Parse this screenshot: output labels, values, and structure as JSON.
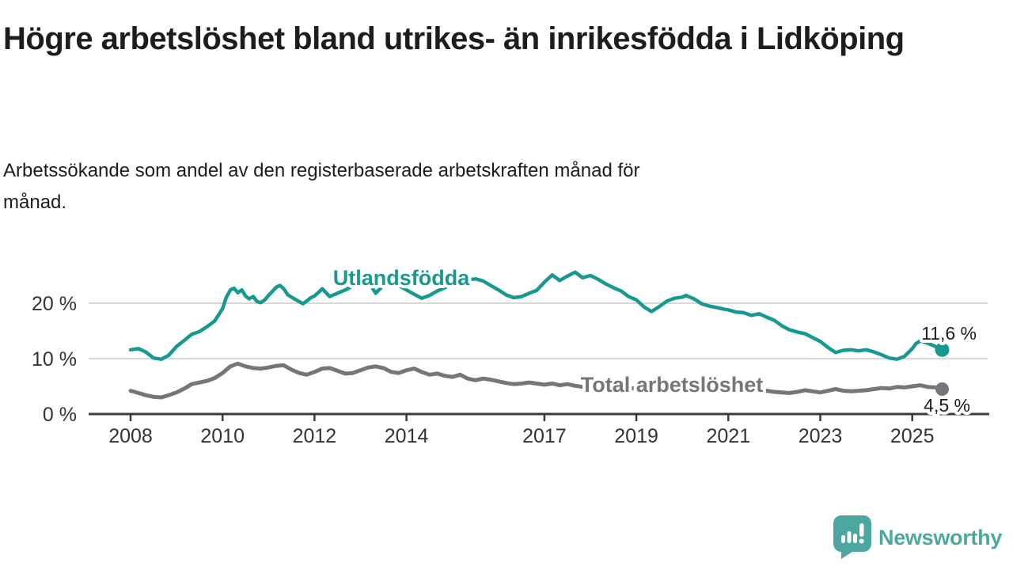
{
  "header": {
    "title": "Högre arbetslöshet bland utrikes- än inrikesfödda i Lidköping",
    "subtitle": "Arbetssökande som andel av den registerbaserade arbetskraften månad för månad."
  },
  "footer": {
    "brand": "Newsworthy"
  },
  "colors": {
    "foreign_born_line": "#18998F",
    "total_line": "#76757A",
    "brand_teal": "#4CA7A1",
    "axis": "#3B3B3B",
    "grid": "#CCCCCC",
    "text": "#1D1D1D"
  },
  "chart_data": {
    "type": "line",
    "title": "Högre arbetslöshet bland utrikes- än inrikesfödda i Lidköping",
    "subtitle": "Arbetssökande som andel av den registerbaserade arbetskraften månad för månad.",
    "unit": "%",
    "grid": "horizontal",
    "legend_position": "inline-labels",
    "x_ticks": [
      2008,
      2010,
      2012,
      2014,
      2017,
      2019,
      2021,
      2023,
      2025
    ],
    "y_ticks": [
      0,
      10,
      20
    ],
    "y_tick_suffix": " %",
    "xlim": [
      2007.1,
      2026.7
    ],
    "ylim": [
      0,
      26
    ],
    "series": [
      {
        "name": "Total arbetslöshet",
        "color": "#76757A",
        "end_label": "4,5 %",
        "end_value": 4.5,
        "points": [
          [
            2008.0,
            4.2
          ],
          [
            2008.17,
            3.8
          ],
          [
            2008.33,
            3.4
          ],
          [
            2008.5,
            3.1
          ],
          [
            2008.67,
            3.0
          ],
          [
            2008.83,
            3.4
          ],
          [
            2009.0,
            3.9
          ],
          [
            2009.17,
            4.6
          ],
          [
            2009.33,
            5.4
          ],
          [
            2009.5,
            5.7
          ],
          [
            2009.67,
            6.0
          ],
          [
            2009.83,
            6.5
          ],
          [
            2010.0,
            7.4
          ],
          [
            2010.17,
            8.6
          ],
          [
            2010.33,
            9.1
          ],
          [
            2010.5,
            8.6
          ],
          [
            2010.67,
            8.3
          ],
          [
            2010.83,
            8.2
          ],
          [
            2011.0,
            8.4
          ],
          [
            2011.17,
            8.7
          ],
          [
            2011.33,
            8.8
          ],
          [
            2011.5,
            8.0
          ],
          [
            2011.67,
            7.4
          ],
          [
            2011.83,
            7.1
          ],
          [
            2012.0,
            7.6
          ],
          [
            2012.17,
            8.2
          ],
          [
            2012.33,
            8.3
          ],
          [
            2012.5,
            7.8
          ],
          [
            2012.67,
            7.3
          ],
          [
            2012.83,
            7.4
          ],
          [
            2013.0,
            7.9
          ],
          [
            2013.17,
            8.4
          ],
          [
            2013.33,
            8.6
          ],
          [
            2013.5,
            8.3
          ],
          [
            2013.67,
            7.6
          ],
          [
            2013.83,
            7.4
          ],
          [
            2014.0,
            7.9
          ],
          [
            2014.17,
            8.2
          ],
          [
            2014.33,
            7.6
          ],
          [
            2014.5,
            7.1
          ],
          [
            2014.67,
            7.3
          ],
          [
            2014.83,
            6.9
          ],
          [
            2015.0,
            6.7
          ],
          [
            2015.17,
            7.1
          ],
          [
            2015.33,
            6.4
          ],
          [
            2015.5,
            6.1
          ],
          [
            2015.67,
            6.4
          ],
          [
            2015.83,
            6.2
          ],
          [
            2016.0,
            5.9
          ],
          [
            2016.17,
            5.6
          ],
          [
            2016.33,
            5.4
          ],
          [
            2016.5,
            5.5
          ],
          [
            2016.67,
            5.7
          ],
          [
            2016.83,
            5.5
          ],
          [
            2017.0,
            5.3
          ],
          [
            2017.17,
            5.5
          ],
          [
            2017.33,
            5.2
          ],
          [
            2017.5,
            5.4
          ],
          [
            2017.67,
            5.1
          ],
          [
            2017.83,
            4.9
          ],
          [
            2018.0,
            5.0
          ],
          [
            2018.17,
            5.2
          ],
          [
            2018.33,
            4.9
          ],
          [
            2018.5,
            4.7
          ],
          [
            2018.67,
            4.9
          ],
          [
            2018.83,
            4.7
          ],
          [
            2019.0,
            4.6
          ],
          [
            2019.17,
            4.8
          ],
          [
            2019.33,
            4.6
          ],
          [
            2019.5,
            4.5
          ],
          [
            2019.67,
            4.7
          ],
          [
            2019.83,
            4.6
          ],
          [
            2020.0,
            4.8
          ],
          [
            2020.17,
            5.4
          ],
          [
            2020.33,
            5.8
          ],
          [
            2020.5,
            5.6
          ],
          [
            2020.67,
            5.3
          ],
          [
            2020.83,
            5.1
          ],
          [
            2021.0,
            5.0
          ],
          [
            2021.17,
            4.8
          ],
          [
            2021.33,
            4.5
          ],
          [
            2021.5,
            4.3
          ],
          [
            2021.67,
            4.4
          ],
          [
            2021.83,
            4.2
          ],
          [
            2022.0,
            4.0
          ],
          [
            2022.17,
            3.9
          ],
          [
            2022.33,
            3.8
          ],
          [
            2022.5,
            4.0
          ],
          [
            2022.67,
            4.3
          ],
          [
            2022.83,
            4.1
          ],
          [
            2023.0,
            3.9
          ],
          [
            2023.17,
            4.2
          ],
          [
            2023.33,
            4.5
          ],
          [
            2023.5,
            4.2
          ],
          [
            2023.67,
            4.1
          ],
          [
            2023.83,
            4.2
          ],
          [
            2024.0,
            4.3
          ],
          [
            2024.17,
            4.5
          ],
          [
            2024.33,
            4.7
          ],
          [
            2024.5,
            4.6
          ],
          [
            2024.67,
            4.9
          ],
          [
            2024.83,
            4.8
          ],
          [
            2025.0,
            5.0
          ],
          [
            2025.17,
            5.2
          ],
          [
            2025.33,
            4.9
          ],
          [
            2025.5,
            4.8
          ],
          [
            2025.65,
            4.5
          ]
        ]
      },
      {
        "name": "Utlandsfödda",
        "color": "#18998F",
        "end_label": "11,6 %",
        "end_value": 11.6,
        "points": [
          [
            2008.0,
            11.6
          ],
          [
            2008.17,
            11.8
          ],
          [
            2008.33,
            11.2
          ],
          [
            2008.5,
            10.1
          ],
          [
            2008.67,
            9.9
          ],
          [
            2008.83,
            10.6
          ],
          [
            2009.0,
            12.2
          ],
          [
            2009.17,
            13.3
          ],
          [
            2009.33,
            14.4
          ],
          [
            2009.5,
            14.9
          ],
          [
            2009.67,
            15.8
          ],
          [
            2009.83,
            16.8
          ],
          [
            2010.0,
            19.0
          ],
          [
            2010.08,
            21.0
          ],
          [
            2010.17,
            22.4
          ],
          [
            2010.25,
            22.7
          ],
          [
            2010.33,
            21.9
          ],
          [
            2010.42,
            22.4
          ],
          [
            2010.5,
            21.3
          ],
          [
            2010.58,
            20.8
          ],
          [
            2010.67,
            21.2
          ],
          [
            2010.75,
            20.3
          ],
          [
            2010.83,
            20.1
          ],
          [
            2010.92,
            20.6
          ],
          [
            2011.0,
            21.4
          ],
          [
            2011.17,
            22.9
          ],
          [
            2011.25,
            23.2
          ],
          [
            2011.33,
            22.6
          ],
          [
            2011.42,
            21.5
          ],
          [
            2011.58,
            20.7
          ],
          [
            2011.75,
            19.9
          ],
          [
            2011.83,
            20.4
          ],
          [
            2011.92,
            21.0
          ],
          [
            2012.0,
            21.3
          ],
          [
            2012.17,
            22.6
          ],
          [
            2012.33,
            21.2
          ],
          [
            2012.5,
            21.8
          ],
          [
            2012.67,
            22.4
          ],
          [
            2012.83,
            23.1
          ],
          [
            2013.0,
            23.6
          ],
          [
            2013.17,
            23.9
          ],
          [
            2013.33,
            21.8
          ],
          [
            2013.5,
            23.3
          ],
          [
            2013.67,
            23.7
          ],
          [
            2013.83,
            23.2
          ],
          [
            2014.0,
            22.4
          ],
          [
            2014.17,
            21.6
          ],
          [
            2014.33,
            20.9
          ],
          [
            2014.5,
            21.4
          ],
          [
            2014.67,
            22.2
          ],
          [
            2014.83,
            22.8
          ],
          [
            2015.0,
            23.4
          ],
          [
            2015.17,
            23.8
          ],
          [
            2015.33,
            24.2
          ],
          [
            2015.5,
            24.4
          ],
          [
            2015.67,
            24.0
          ],
          [
            2015.83,
            23.2
          ],
          [
            2016.0,
            22.4
          ],
          [
            2016.17,
            21.5
          ],
          [
            2016.33,
            21.0
          ],
          [
            2016.5,
            21.2
          ],
          [
            2016.67,
            21.8
          ],
          [
            2016.83,
            22.3
          ],
          [
            2017.0,
            23.8
          ],
          [
            2017.17,
            25.1
          ],
          [
            2017.33,
            24.1
          ],
          [
            2017.5,
            24.9
          ],
          [
            2017.67,
            25.6
          ],
          [
            2017.83,
            24.6
          ],
          [
            2018.0,
            25.0
          ],
          [
            2018.17,
            24.3
          ],
          [
            2018.33,
            23.5
          ],
          [
            2018.5,
            22.8
          ],
          [
            2018.67,
            22.2
          ],
          [
            2018.83,
            21.2
          ],
          [
            2019.0,
            20.6
          ],
          [
            2019.17,
            19.3
          ],
          [
            2019.33,
            18.5
          ],
          [
            2019.5,
            19.4
          ],
          [
            2019.67,
            20.4
          ],
          [
            2019.83,
            20.9
          ],
          [
            2020.0,
            21.1
          ],
          [
            2020.08,
            21.4
          ],
          [
            2020.25,
            20.8
          ],
          [
            2020.42,
            19.9
          ],
          [
            2020.58,
            19.5
          ],
          [
            2020.75,
            19.2
          ],
          [
            2020.92,
            18.9
          ],
          [
            2021.0,
            18.8
          ],
          [
            2021.17,
            18.4
          ],
          [
            2021.33,
            18.3
          ],
          [
            2021.5,
            17.8
          ],
          [
            2021.67,
            18.1
          ],
          [
            2021.83,
            17.5
          ],
          [
            2022.0,
            16.9
          ],
          [
            2022.17,
            15.9
          ],
          [
            2022.33,
            15.2
          ],
          [
            2022.5,
            14.8
          ],
          [
            2022.67,
            14.5
          ],
          [
            2022.83,
            13.8
          ],
          [
            2023.0,
            13.1
          ],
          [
            2023.17,
            12.0
          ],
          [
            2023.33,
            11.1
          ],
          [
            2023.5,
            11.5
          ],
          [
            2023.67,
            11.6
          ],
          [
            2023.83,
            11.4
          ],
          [
            2024.0,
            11.6
          ],
          [
            2024.17,
            11.2
          ],
          [
            2024.33,
            10.7
          ],
          [
            2024.5,
            10.1
          ],
          [
            2024.67,
            9.9
          ],
          [
            2024.83,
            10.4
          ],
          [
            2025.0,
            11.8
          ],
          [
            2025.08,
            12.7
          ],
          [
            2025.17,
            13.2
          ],
          [
            2025.33,
            12.8
          ],
          [
            2025.5,
            12.2
          ],
          [
            2025.65,
            11.6
          ]
        ]
      }
    ]
  }
}
